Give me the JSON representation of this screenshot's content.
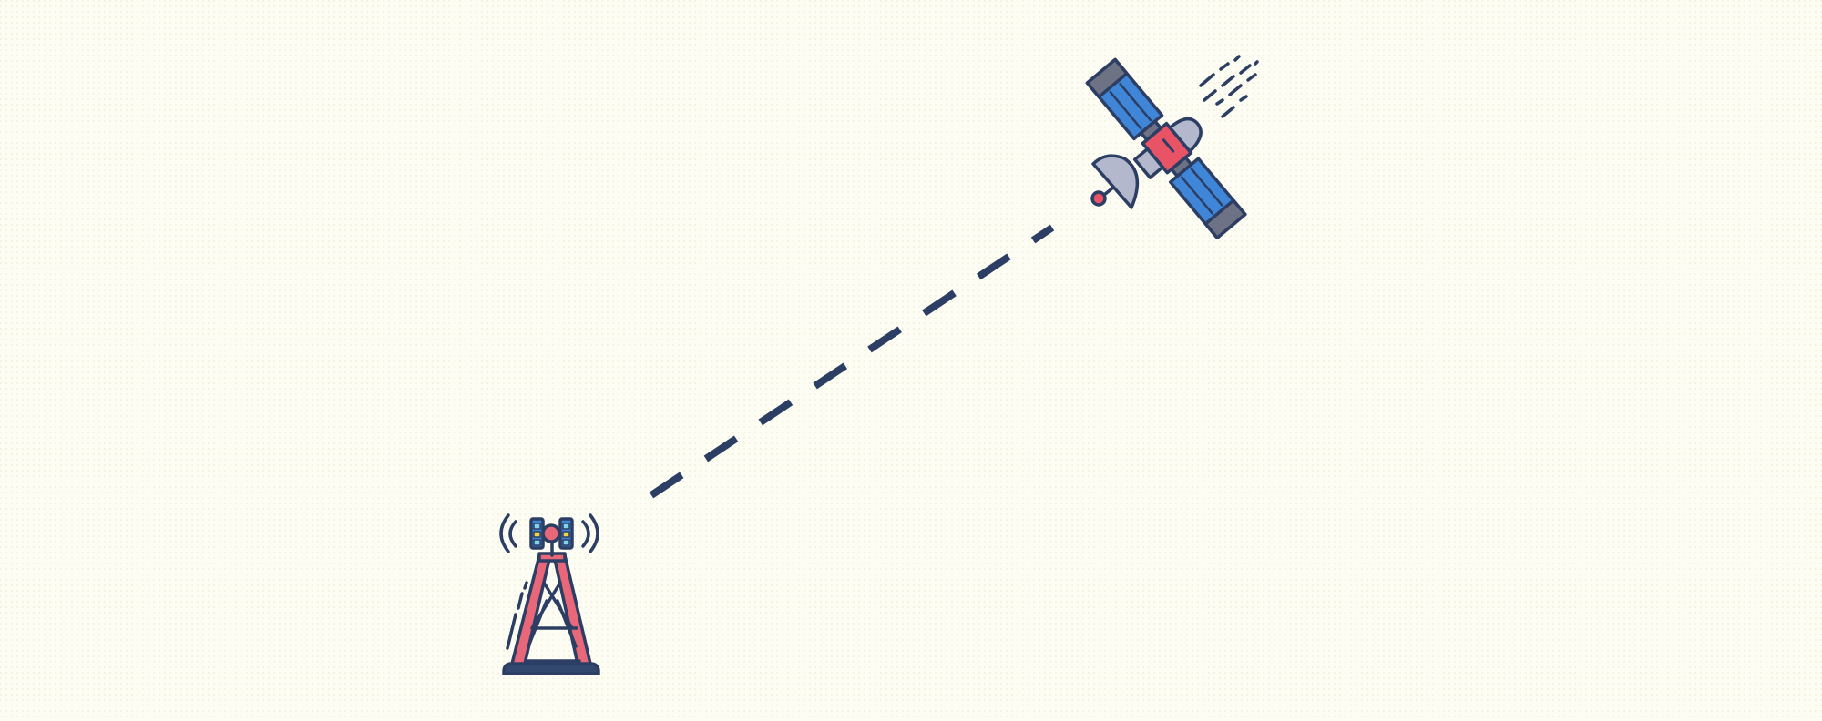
{
  "scene": {
    "background": "#fdfdf3",
    "outline": "#2c3e63",
    "tower_icon": "radio-tower-icon",
    "satellite_icon": "satellite-icon",
    "link": "dashed-signal-line",
    "colors": {
      "tower_body": "#e8687a",
      "panel_blue": "#3f86d8",
      "panel_dark": "#6d7385",
      "satellite_body": "#e85365",
      "dish": "#b4b8cc",
      "led_yellow": "#f3d54b",
      "led_cyan": "#7fd4ec"
    }
  }
}
